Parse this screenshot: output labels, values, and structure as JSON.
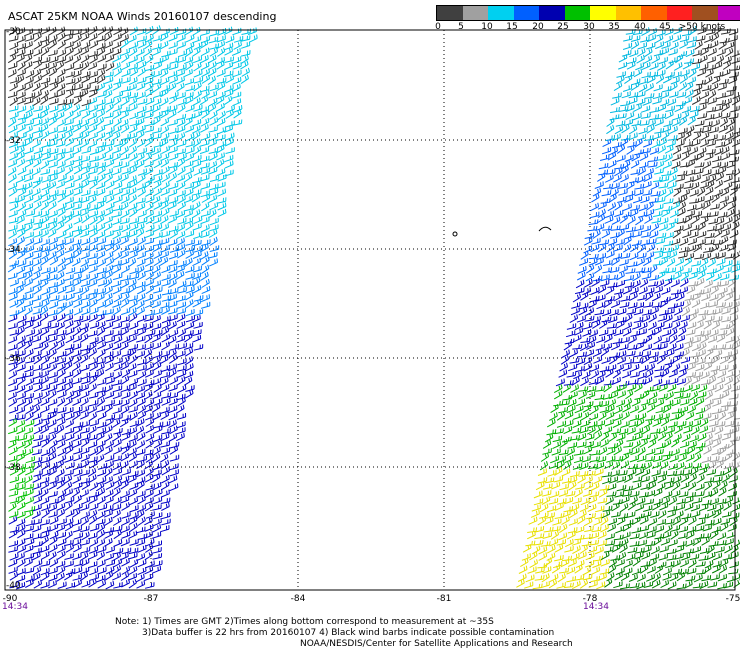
{
  "title": "ASCAT 25KM NOAA Winds 20160107 descending",
  "scale": {
    "colors": [
      "#404040",
      "#a0a0a0",
      "#00d0f0",
      "#0060ff",
      "#0000b0",
      "#00c000",
      "#ffff00",
      "#ffc000",
      "#ff6000",
      "#ff2020",
      "#a05020",
      "#c000c0",
      "#6a00b0"
    ],
    "labels": [
      "0",
      "5",
      "10",
      "15",
      "20",
      "25",
      "30",
      "35",
      "40",
      "45",
      ">50 knots"
    ]
  },
  "map": {
    "lat_labels": [
      "-30",
      "-32",
      "-34",
      "-36",
      "-38",
      "-40"
    ],
    "lon_labels": [
      "-90",
      "-87",
      "-84",
      "-81",
      "-78",
      "-75"
    ],
    "time_left": "14:34",
    "time_right": "14:34"
  },
  "notes": [
    "Note: 1) Times are GMT 2)Times along bottom correspond to measurement at ~35S",
    "3)Data buffer is 22 hrs from 20160107 4) Black wind barbs indicate possible contamination",
    "NOAA/NESDIS/Center for Satellite Applications and Research"
  ]
}
